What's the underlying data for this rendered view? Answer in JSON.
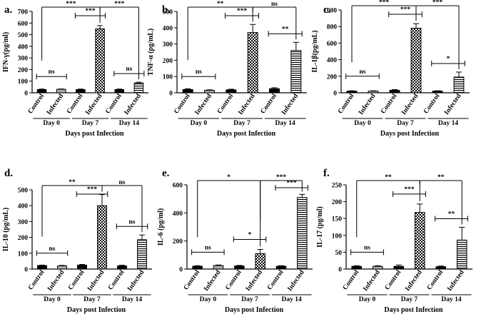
{
  "chart_data": [
    {
      "type": "bar",
      "panel_letter": "a.",
      "ylabel": "IFN-γ(pg/ml)",
      "xlabel": "Days post Infection",
      "ylim": [
        0,
        700
      ],
      "yticks": [
        0,
        100,
        200,
        300,
        400,
        500,
        600,
        700
      ],
      "categories": [
        "Control",
        "Infected",
        "Control",
        "Infected",
        "Control",
        "Infected"
      ],
      "groups": [
        "Day 0",
        "Day 7",
        "Day 14"
      ],
      "values": [
        28,
        30,
        28,
        550,
        28,
        85
      ],
      "errors": [
        4,
        3,
        4,
        28,
        4,
        6
      ],
      "significance": [
        {
          "pair": [
            0,
            1
          ],
          "label": "ns"
        },
        {
          "pair": [
            2,
            3
          ],
          "label": "***"
        },
        {
          "pair": [
            4,
            5
          ],
          "label": "ns"
        },
        {
          "pair": [
            0,
            3
          ],
          "label": "***"
        },
        {
          "pair": [
            3,
            5
          ],
          "label": "***"
        }
      ]
    },
    {
      "type": "bar",
      "panel_letter": "b.",
      "ylabel": "TNF-α (pg/mL)",
      "xlabel": "Days post Infection",
      "ylim": [
        0,
        500
      ],
      "yticks": [
        0,
        100,
        200,
        300,
        400,
        500
      ],
      "categories": [
        "Control",
        "Infected",
        "Control",
        "Infected",
        "Control",
        "Infected"
      ],
      "groups": [
        "Day 0",
        "Day 7",
        "Day 14"
      ],
      "values": [
        20,
        15,
        18,
        370,
        25,
        260
      ],
      "errors": [
        5,
        3,
        4,
        50,
        6,
        50
      ],
      "significance": [
        {
          "pair": [
            0,
            1
          ],
          "label": "ns"
        },
        {
          "pair": [
            2,
            3
          ],
          "label": "***"
        },
        {
          "pair": [
            4,
            5
          ],
          "label": "**"
        },
        {
          "pair": [
            0,
            3
          ],
          "label": "**"
        },
        {
          "pair": [
            3,
            5
          ],
          "label": "ns"
        }
      ]
    },
    {
      "type": "bar",
      "panel_letter": "c.",
      "ylabel": "IL-1β(pg/mL)",
      "xlabel": "Days post Infection",
      "ylim": [
        0,
        1000
      ],
      "yticks": [
        0,
        200,
        400,
        600,
        800,
        1000
      ],
      "categories": [
        "Control",
        "Infected",
        "Control",
        "Infected",
        "Control",
        "Infected"
      ],
      "groups": [
        "Day 0",
        "Day 7",
        "Day 14"
      ],
      "values": [
        20,
        20,
        30,
        780,
        20,
        190
      ],
      "errors": [
        4,
        4,
        8,
        55,
        4,
        60
      ],
      "significance": [
        {
          "pair": [
            0,
            1
          ],
          "label": "ns"
        },
        {
          "pair": [
            2,
            3
          ],
          "label": "***"
        },
        {
          "pair": [
            4,
            5
          ],
          "label": "*"
        },
        {
          "pair": [
            0,
            3
          ],
          "label": "***"
        },
        {
          "pair": [
            3,
            5
          ],
          "label": "***"
        }
      ]
    },
    {
      "type": "bar",
      "panel_letter": "d.",
      "ylabel": "IL-10 (pg/mL)",
      "xlabel": "Days post Infection",
      "ylim": [
        0,
        500
      ],
      "yticks": [
        0,
        100,
        200,
        300,
        400,
        500
      ],
      "categories": [
        "Control",
        "Infected",
        "Control",
        "Infected",
        "Control",
        "Infected"
      ],
      "groups": [
        "Day 0",
        "Day 7",
        "Day 14"
      ],
      "values": [
        22,
        20,
        25,
        400,
        20,
        185
      ],
      "errors": [
        3,
        3,
        4,
        70,
        4,
        30
      ],
      "significance": [
        {
          "pair": [
            0,
            1
          ],
          "label": "ns"
        },
        {
          "pair": [
            2,
            3
          ],
          "label": "***"
        },
        {
          "pair": [
            4,
            5
          ],
          "label": "ns"
        },
        {
          "pair": [
            0,
            3
          ],
          "label": "**"
        },
        {
          "pair": [
            3,
            5
          ],
          "label": "ns"
        }
      ]
    },
    {
      "type": "bar",
      "panel_letter": "e.",
      "ylabel": "IL-6 (pg/ml)",
      "xlabel": "Days post Infection",
      "ylim": [
        0,
        600
      ],
      "yticks": [
        0,
        200,
        400,
        600
      ],
      "categories": [
        "Control",
        "Infected",
        "Control",
        "Infected",
        "Control",
        "Infected"
      ],
      "groups": [
        "Day 0",
        "Day 7",
        "Day 14"
      ],
      "values": [
        20,
        25,
        22,
        110,
        20,
        510
      ],
      "errors": [
        4,
        4,
        4,
        30,
        4,
        22
      ],
      "significance": [
        {
          "pair": [
            0,
            1
          ],
          "label": "ns"
        },
        {
          "pair": [
            2,
            3
          ],
          "label": "*"
        },
        {
          "pair": [
            4,
            5
          ],
          "label": "***"
        },
        {
          "pair": [
            0,
            3
          ],
          "label": "*"
        },
        {
          "pair": [
            3,
            5
          ],
          "label": "***"
        }
      ]
    },
    {
      "type": "bar",
      "panel_letter": "f.",
      "ylabel": "IL-17 (pg/ml)",
      "xlabel": "Days post Infection",
      "ylim": [
        0,
        250
      ],
      "yticks": [
        0,
        50,
        100,
        150,
        200,
        250
      ],
      "categories": [
        "Control",
        "Infected",
        "Control",
        "Infected",
        "Control",
        "Infected"
      ],
      "groups": [
        "Day 0",
        "Day 7",
        "Day 14"
      ],
      "values": [
        8,
        8,
        8,
        168,
        7,
        86
      ],
      "errors": [
        2,
        2,
        4,
        25,
        2,
        38
      ],
      "significance": [
        {
          "pair": [
            0,
            1
          ],
          "label": "ns"
        },
        {
          "pair": [
            2,
            3
          ],
          "label": "***"
        },
        {
          "pair": [
            4,
            5
          ],
          "label": "**"
        },
        {
          "pair": [
            0,
            3
          ],
          "label": "**"
        },
        {
          "pair": [
            3,
            5
          ],
          "label": "**"
        }
      ]
    }
  ]
}
